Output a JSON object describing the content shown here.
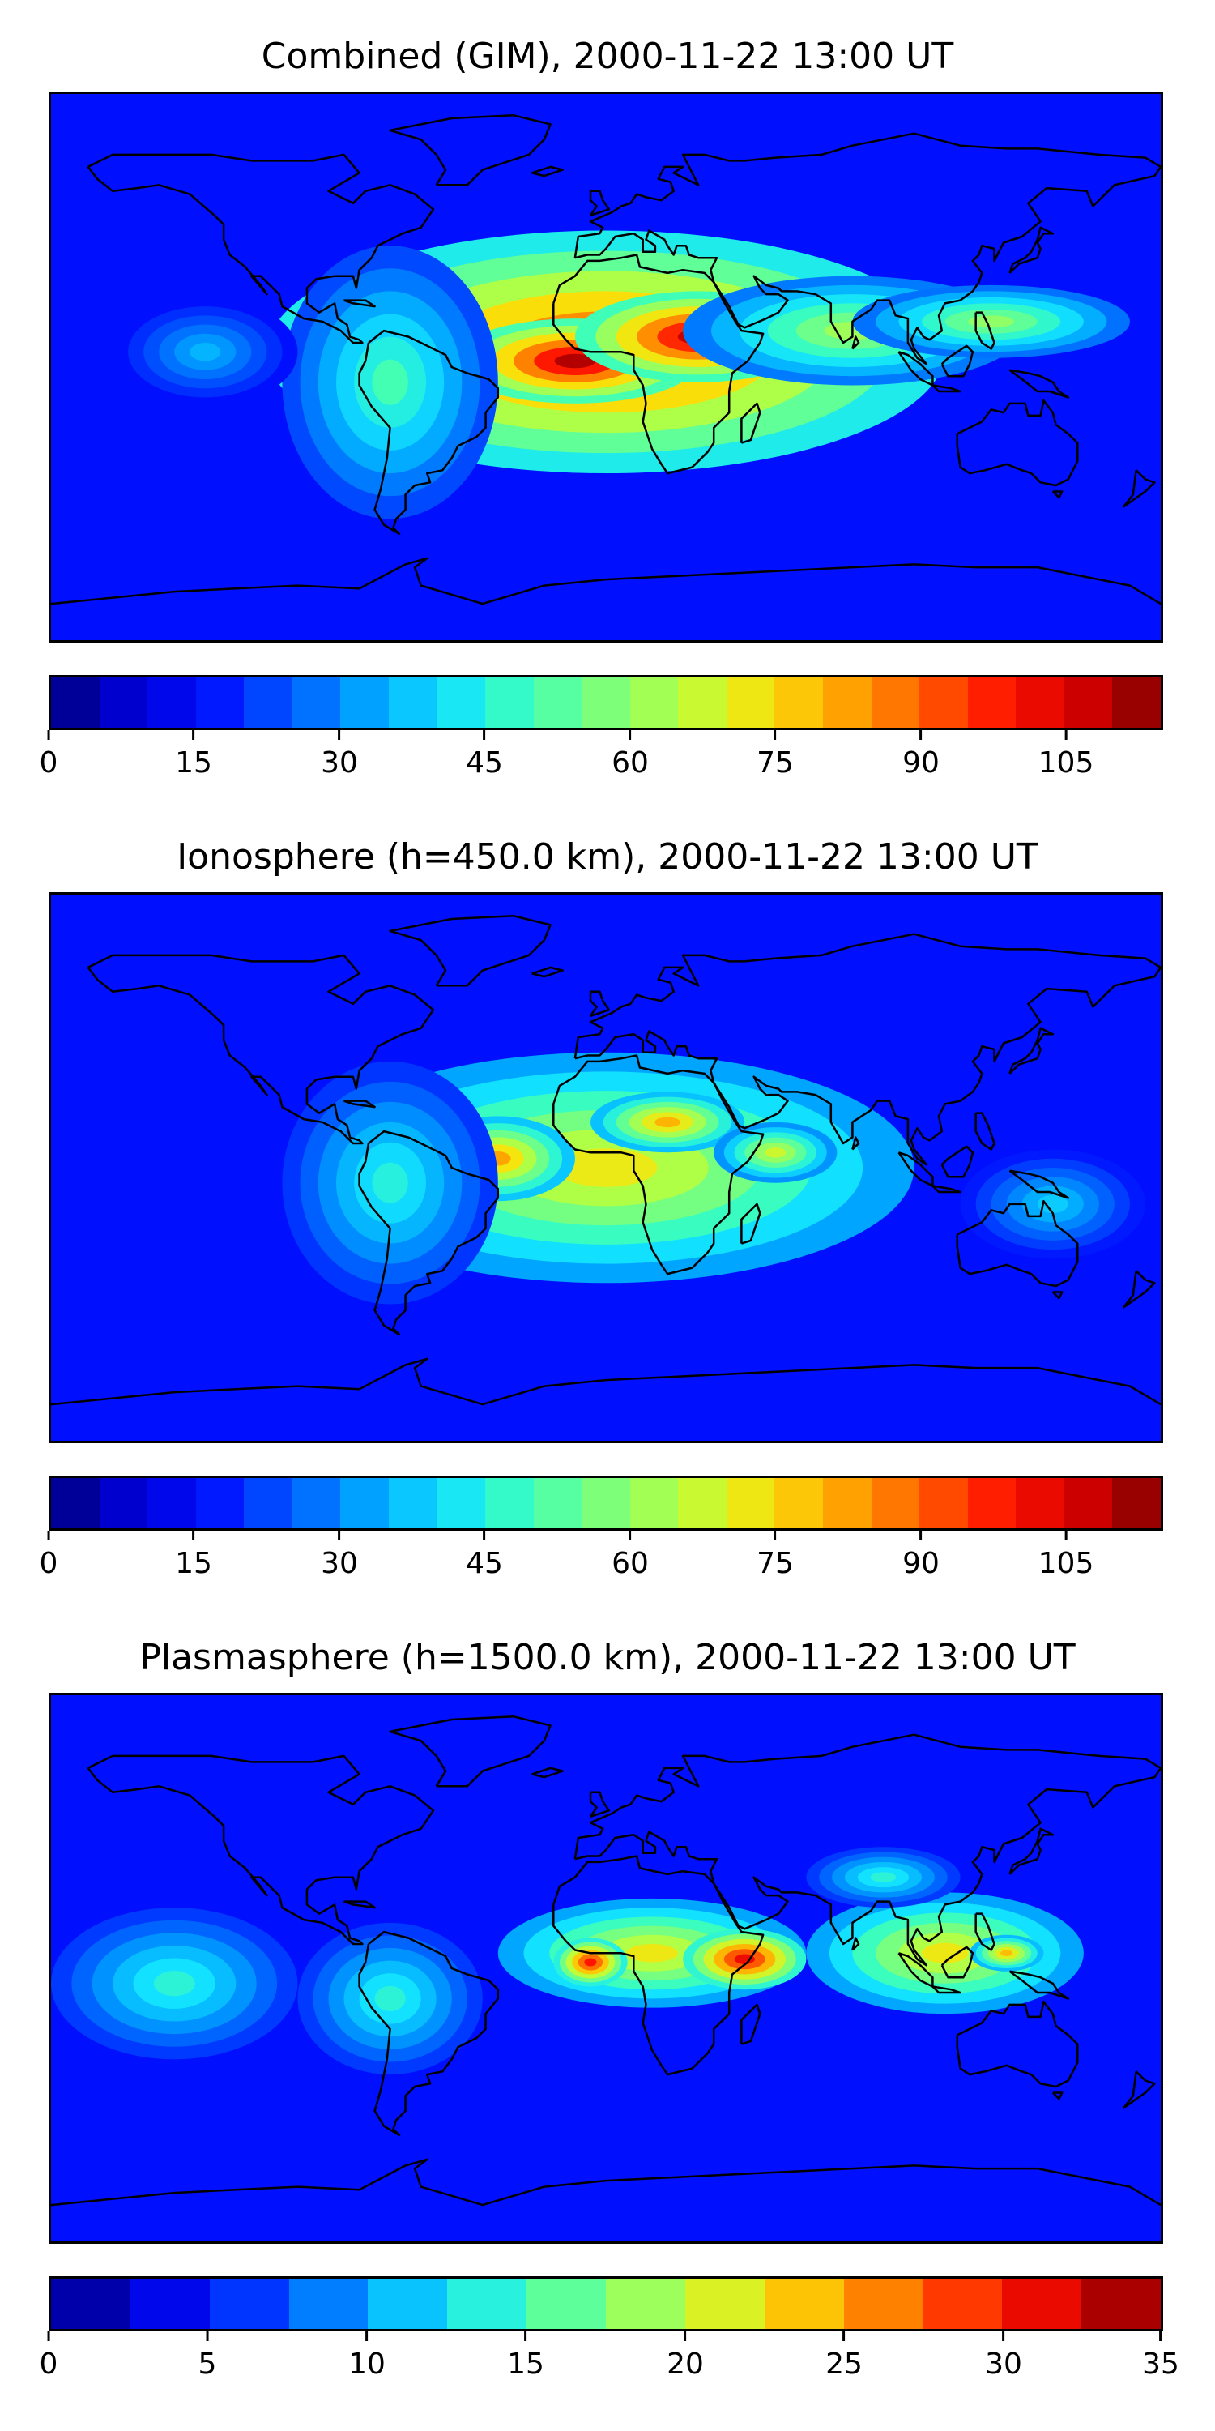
{
  "panels": [
    {
      "title": "Combined (GIM), 2000-11-22 13:00 UT",
      "colorbar_ticks": [
        "0",
        "15",
        "30",
        "45",
        "60",
        "75",
        "90",
        "105"
      ],
      "colorbar_range": [
        0,
        115
      ],
      "colorbar_levels": 23,
      "blobs": [
        {
          "lon": 0,
          "lat": 5,
          "rx": 110,
          "ry": 40,
          "value": 95
        },
        {
          "lon": -10,
          "lat": 2,
          "rx": 40,
          "ry": 14,
          "value": 110
        },
        {
          "lon": 30,
          "lat": 10,
          "rx": 40,
          "ry": 15,
          "value": 108
        },
        {
          "lon": 80,
          "lat": 12,
          "rx": 55,
          "ry": 18,
          "value": 62
        },
        {
          "lon": 125,
          "lat": 15,
          "rx": 45,
          "ry": 12,
          "value": 60
        },
        {
          "lon": -70,
          "lat": -5,
          "rx": 35,
          "ry": 45,
          "value": 50
        },
        {
          "lon": -130,
          "lat": 5,
          "rx": 30,
          "ry": 18,
          "value": 35
        }
      ]
    },
    {
      "title": "Ionosphere  (h=450.0 km), 2000-11-22 13:00 UT",
      "colorbar_ticks": [
        "0",
        "15",
        "30",
        "45",
        "60",
        "75",
        "90",
        "105"
      ],
      "colorbar_range": [
        0,
        115
      ],
      "colorbar_levels": 23,
      "blobs": [
        {
          "lon": 0,
          "lat": 0,
          "rx": 100,
          "ry": 38,
          "value": 72
        },
        {
          "lon": -35,
          "lat": 3,
          "rx": 25,
          "ry": 14,
          "value": 82
        },
        {
          "lon": 20,
          "lat": 15,
          "rx": 25,
          "ry": 10,
          "value": 80
        },
        {
          "lon": 55,
          "lat": 5,
          "rx": 20,
          "ry": 10,
          "value": 68
        },
        {
          "lon": -70,
          "lat": -5,
          "rx": 35,
          "ry": 40,
          "value": 45
        },
        {
          "lon": 145,
          "lat": -12,
          "rx": 30,
          "ry": 18,
          "value": 38
        }
      ]
    },
    {
      "title": "Plasmasphere (h=1500.0 km), 2000-11-22 13:00 UT",
      "colorbar_ticks": [
        "0",
        "5",
        "10",
        "15",
        "20",
        "25",
        "30",
        "35"
      ],
      "colorbar_range": [
        0,
        35
      ],
      "colorbar_levels": 14,
      "blobs": [
        {
          "lon": 15,
          "lat": 5,
          "rx": 50,
          "ry": 18,
          "value": 22
        },
        {
          "lon": -5,
          "lat": 2,
          "rx": 12,
          "ry": 8,
          "value": 30
        },
        {
          "lon": 45,
          "lat": 3,
          "rx": 20,
          "ry": 10,
          "value": 31
        },
        {
          "lon": 110,
          "lat": 5,
          "rx": 45,
          "ry": 20,
          "value": 22
        },
        {
          "lon": 130,
          "lat": 5,
          "rx": 12,
          "ry": 6,
          "value": 24
        },
        {
          "lon": -140,
          "lat": -5,
          "rx": 40,
          "ry": 25,
          "value": 14
        },
        {
          "lon": -70,
          "lat": -10,
          "rx": 30,
          "ry": 25,
          "value": 14
        },
        {
          "lon": 90,
          "lat": 30,
          "rx": 25,
          "ry": 10,
          "value": 14
        }
      ]
    }
  ],
  "colormap": [
    "#00007f",
    "#0000d6",
    "#0010ff",
    "#0058ff",
    "#00a4ff",
    "#12e2ff",
    "#3dffba",
    "#7dff7a",
    "#baff3c",
    "#fae20a",
    "#ffa400",
    "#ff5d00",
    "#ff1400",
    "#d40000",
    "#7f0000"
  ]
}
